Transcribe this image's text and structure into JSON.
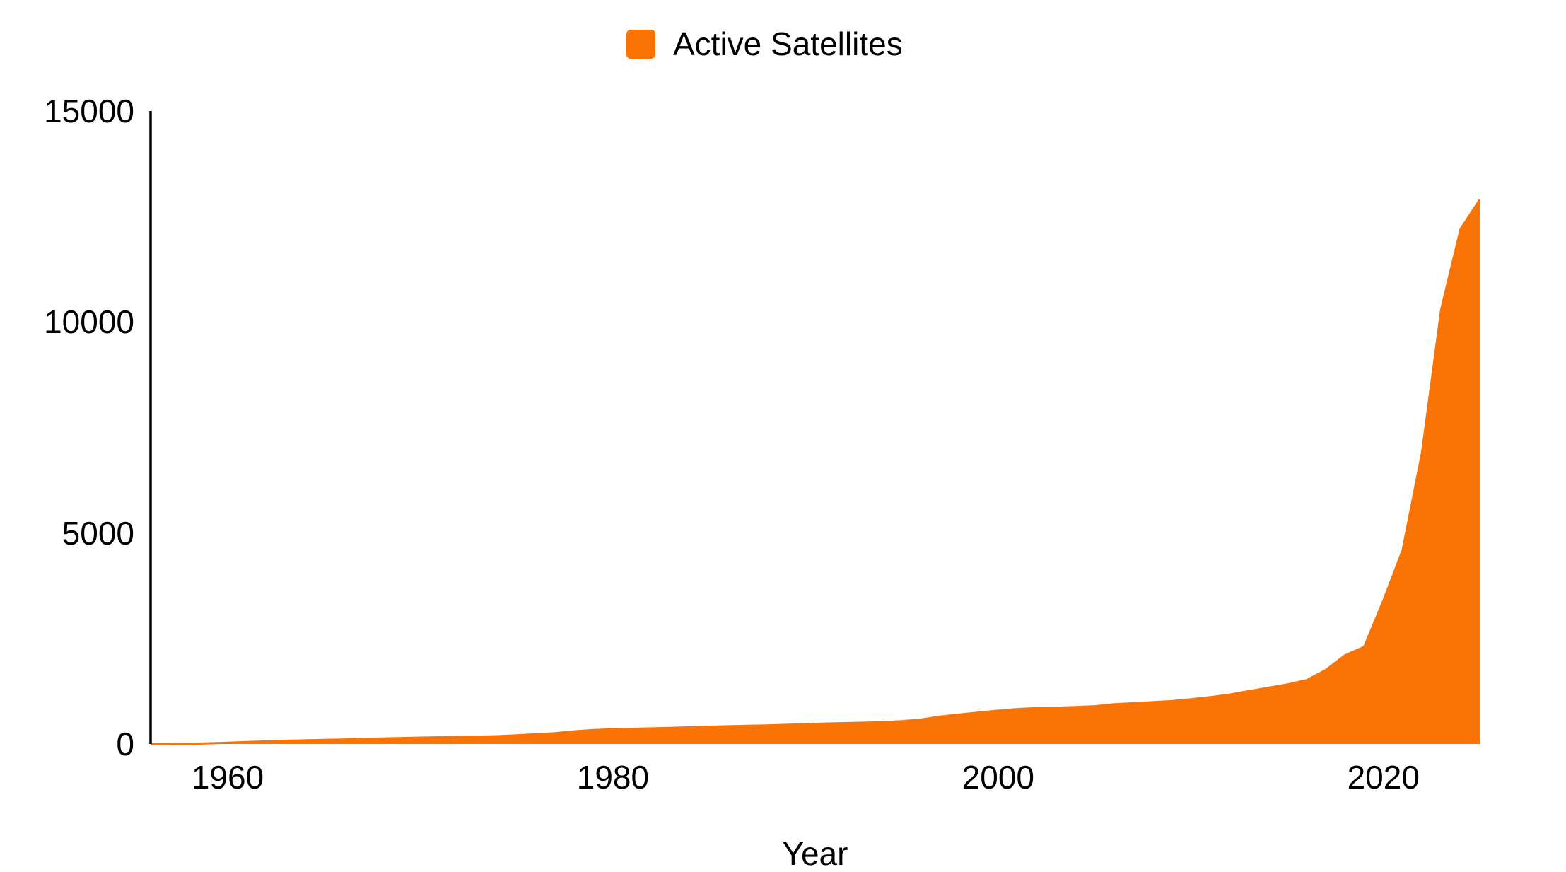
{
  "legend": {
    "label": "Active Satellites",
    "swatch_color": "#fa7305"
  },
  "axis_color": "#000000",
  "text_color": "#000000",
  "chart_data": {
    "type": "area",
    "title": "",
    "xlabel": "Year",
    "ylabel": "",
    "grid": false,
    "legend_position": "top-center",
    "x_range": [
      1956,
      2025
    ],
    "y_range": [
      0,
      15000
    ],
    "x_ticks": [
      1960,
      1980,
      2000,
      2020
    ],
    "y_ticks": [
      0,
      5000,
      10000,
      15000
    ],
    "series": [
      {
        "name": "Active Satellites",
        "color": "#fa7305",
        "x": [
          1956,
          1957,
          1958,
          1959,
          1960,
          1961,
          1962,
          1963,
          1964,
          1965,
          1966,
          1967,
          1968,
          1969,
          1970,
          1971,
          1972,
          1973,
          1974,
          1975,
          1976,
          1977,
          1978,
          1979,
          1980,
          1981,
          1982,
          1983,
          1984,
          1985,
          1986,
          1987,
          1988,
          1989,
          1990,
          1991,
          1992,
          1993,
          1994,
          1995,
          1996,
          1997,
          1998,
          1999,
          2000,
          2001,
          2002,
          2003,
          2004,
          2005,
          2006,
          2007,
          2008,
          2009,
          2010,
          2011,
          2012,
          2013,
          2014,
          2015,
          2016,
          2017,
          2018,
          2019,
          2020,
          2021,
          2022,
          2023,
          2024,
          2025
        ],
        "values": [
          0,
          2,
          5,
          15,
          30,
          45,
          60,
          75,
          85,
          95,
          105,
          120,
          130,
          140,
          150,
          160,
          170,
          175,
          185,
          205,
          230,
          255,
          300,
          330,
          350,
          360,
          370,
          380,
          395,
          410,
          420,
          430,
          440,
          455,
          470,
          485,
          495,
          505,
          515,
          540,
          580,
          650,
          700,
          745,
          790,
          830,
          850,
          860,
          875,
          895,
          940,
          965,
          990,
          1015,
          1060,
          1110,
          1170,
          1250,
          1330,
          1410,
          1510,
          1750,
          2100,
          2300,
          3400,
          4600,
          6900,
          10300,
          12200,
          12900
        ]
      }
    ]
  }
}
